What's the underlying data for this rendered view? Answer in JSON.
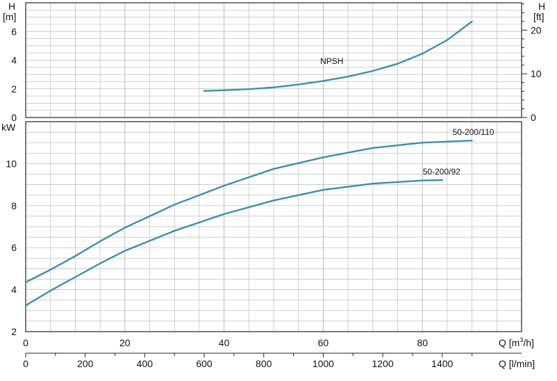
{
  "chart_data": [
    {
      "type": "line",
      "xlabel": "Q [m³/h]",
      "x_unit_secondary": "Q [l/min]",
      "ylabel_left": "H [m]",
      "ylabel_right": "H [ft]",
      "xlim": [
        0,
        100
      ],
      "ylim": [
        0,
        8
      ],
      "yticks_left": [
        0,
        2,
        4,
        6
      ],
      "yticks_right": [
        0,
        10,
        20
      ],
      "grid": true,
      "series": [
        {
          "name": "NPSH",
          "x": [
            36,
            40,
            45,
            50,
            55,
            60,
            65,
            70,
            75,
            80,
            85,
            90
          ],
          "y": [
            1.85,
            1.9,
            1.98,
            2.1,
            2.3,
            2.55,
            2.85,
            3.25,
            3.75,
            4.45,
            5.4,
            6.7
          ]
        }
      ]
    },
    {
      "type": "line",
      "ylabel": "kW",
      "xlim": [
        0,
        100
      ],
      "ylim": [
        2,
        12
      ],
      "yticks": [
        2,
        4,
        6,
        8,
        10
      ],
      "grid": true,
      "series": [
        {
          "name": "50-200/110",
          "x": [
            0,
            5,
            10,
            15,
            20,
            30,
            40,
            50,
            60,
            70,
            80,
            90
          ],
          "y": [
            4.35,
            4.95,
            5.6,
            6.3,
            6.95,
            8.05,
            8.95,
            9.75,
            10.3,
            10.75,
            11.0,
            11.1
          ]
        },
        {
          "name": "50-200/92",
          "x": [
            0,
            5,
            10,
            15,
            20,
            30,
            40,
            50,
            60,
            70,
            80,
            84
          ],
          "y": [
            3.25,
            3.95,
            4.6,
            5.25,
            5.85,
            6.8,
            7.6,
            8.25,
            8.75,
            9.05,
            9.2,
            9.22
          ]
        }
      ]
    }
  ],
  "axes": {
    "top_h_m": "H",
    "top_h_m_unit": "[m]",
    "top_h_ft": "H",
    "top_h_ft_unit": "[ft]",
    "kw_label": "kW",
    "q_m3h_prefix": "Q [m",
    "q_m3h_sup": "3",
    "q_m3h_suffix": "/h]",
    "q_lmin": "Q [l/min]",
    "x_ticks_m3h": [
      "0",
      "20",
      "40",
      "60",
      "80"
    ],
    "x_ticks_lmin": [
      "0",
      "200",
      "400",
      "600",
      "800",
      "1000",
      "1200",
      "1400"
    ],
    "y_ticks_top_left": [
      "0",
      "2",
      "4",
      "6"
    ],
    "y_ticks_top_right": [
      "0",
      "10",
      "20"
    ],
    "y_ticks_bottom": [
      "2",
      "4",
      "6",
      "8",
      "10"
    ]
  },
  "colors": {
    "curve": "#3a8fb0",
    "grid": "#bbbbbb",
    "frame": "#222222"
  }
}
